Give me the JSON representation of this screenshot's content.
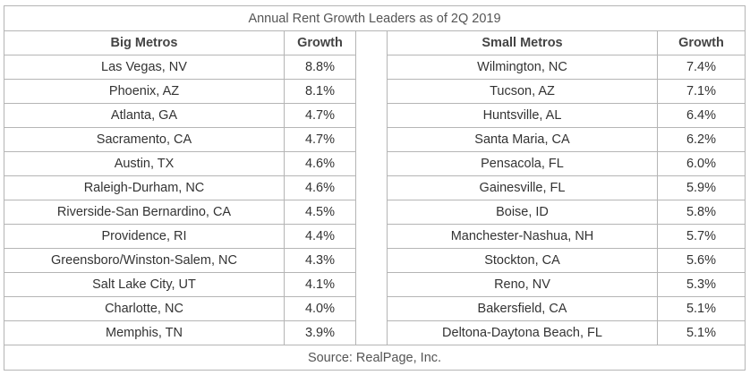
{
  "table": {
    "title": "Annual Rent Growth Leaders as of 2Q 2019",
    "header": [
      "Big Metros",
      "Growth",
      "Small Metros",
      "Growth"
    ],
    "rows": [
      [
        "Las Vegas, NV",
        "8.8%",
        "Wilmington, NC",
        "7.4%"
      ],
      [
        "Phoenix, AZ",
        "8.1%",
        "Tucson, AZ",
        "7.1%"
      ],
      [
        "Atlanta, GA",
        "4.7%",
        "Huntsville, AL",
        "6.4%"
      ],
      [
        "Sacramento, CA",
        "4.7%",
        "Santa Maria, CA",
        "6.2%"
      ],
      [
        "Austin, TX",
        "4.6%",
        "Pensacola, FL",
        "6.0%"
      ],
      [
        "Raleigh-Durham, NC",
        "4.6%",
        "Gainesville, FL",
        "5.9%"
      ],
      [
        "Riverside-San Bernardino, CA",
        "4.5%",
        "Boise, ID",
        "5.8%"
      ],
      [
        "Providence, RI",
        "4.4%",
        "Manchester-Nashua, NH",
        "5.7%"
      ],
      [
        "Greensboro/Winston-Salem, NC",
        "4.3%",
        "Stockton, CA",
        "5.6%"
      ],
      [
        "Salt Lake City, UT",
        "4.1%",
        "Reno, NV",
        "5.3%"
      ],
      [
        "Charlotte, NC",
        "4.0%",
        "Bakersfield, CA",
        "5.1%"
      ],
      [
        "Memphis, TN",
        "3.9%",
        "Deltona-Daytona Beach, FL",
        "5.1%"
      ]
    ],
    "source": "Source: RealPage, Inc."
  }
}
